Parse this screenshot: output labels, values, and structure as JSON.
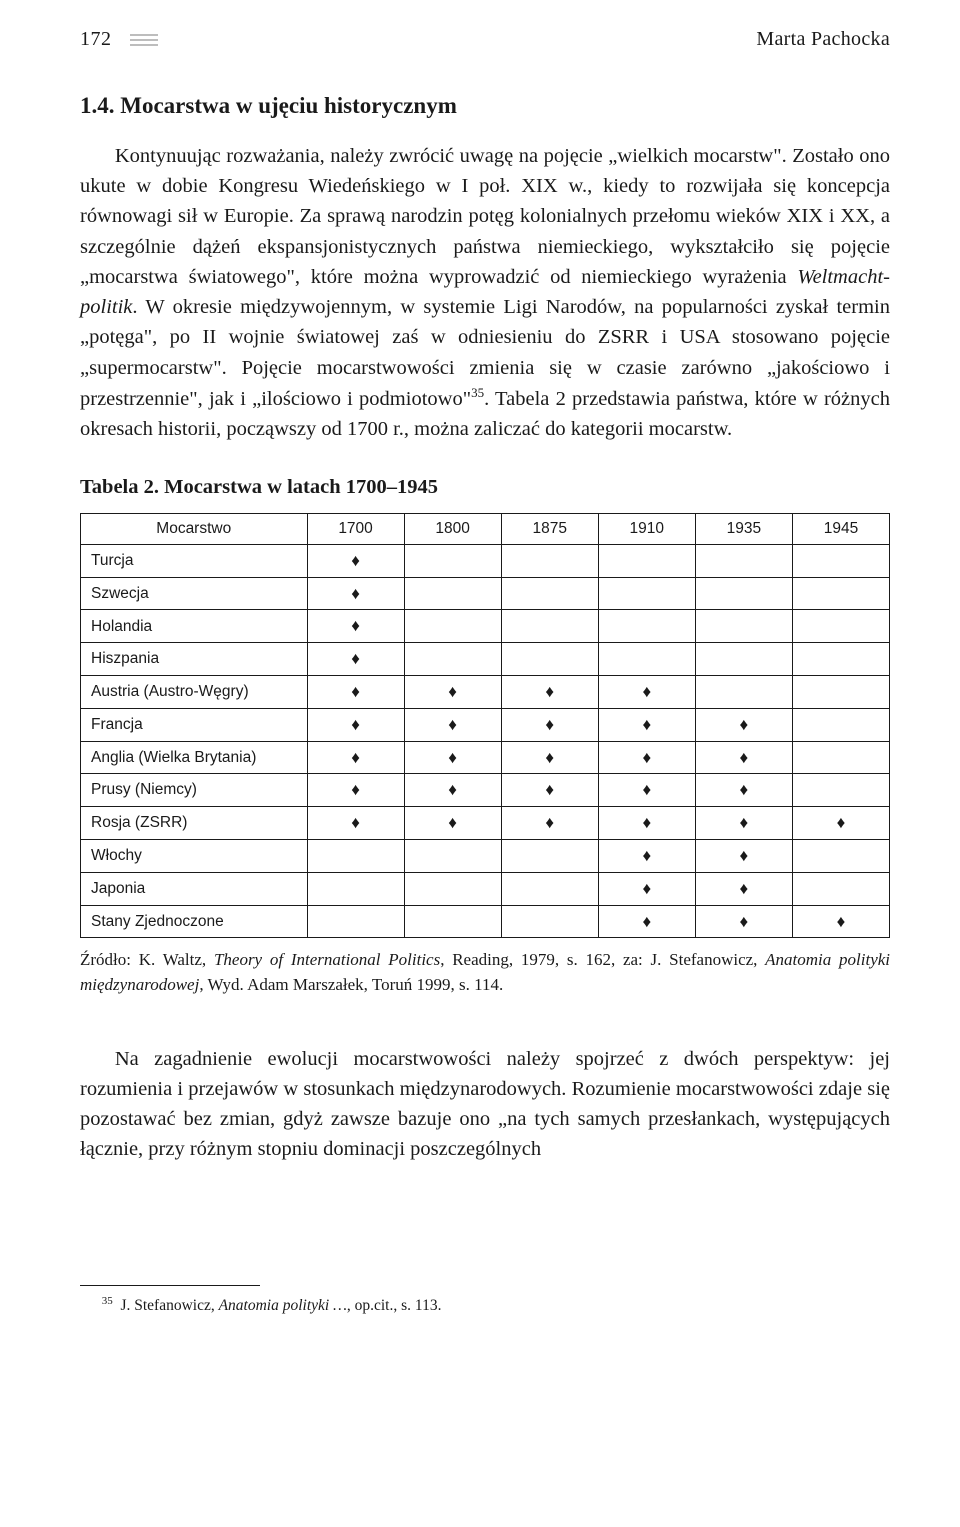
{
  "header": {
    "page_number": "172",
    "author": "Marta Pachocka"
  },
  "section": {
    "number": "1.4.",
    "title": "Mocarstwa w ujęciu historycznym"
  },
  "para1_pre": "Kontynuując rozważania, należy zwrócić uwagę na pojęcie „wielkich mocarstw\". Zostało ono ukute w dobie Kongresu Wiedeńskiego w I poł. XIX w., kiedy to rozwijała się koncepcja równowagi sił w Europie. Za sprawą narodzin potęg kolonialnych przełomu wieków XIX i XX, a szczególnie dążeń ekspansjonistycznych państwa niemieckiego, wykształciło się pojęcie „mocarstwa światowego\", które można wyprowadzić od niemieckiego wyrażenia ",
  "para1_italic": "Weltmacht-politik",
  "para1_post": ". W okresie międzywojennym, w systemie Ligi Narodów, na popularności zyskał termin „potęga\", po II wojnie światowej zaś w odniesieniu do ZSRR i USA stosowano pojęcie „supermocarstw\". Pojęcie mocarstwowości zmienia się w czasie zarówno „jakościowo i przestrzennie\", jak i „ilościowo i podmiotowo\"",
  "para1_fnref": "35",
  "para1_tail": ". Tabela 2 przedstawia państwa, które w różnych okresach historii, począwszy od 1700 r., można zaliczać do kategorii mocarstw.",
  "table": {
    "caption": "Tabela 2. Mocarstwa w latach 1700–1945",
    "columns": [
      "Mocarstwo",
      "1700",
      "1800",
      "1875",
      "1910",
      "1935",
      "1945"
    ],
    "marker": "♦",
    "rows": [
      {
        "name": "Turcja",
        "marks": [
          1,
          0,
          0,
          0,
          0,
          0
        ]
      },
      {
        "name": "Szwecja",
        "marks": [
          1,
          0,
          0,
          0,
          0,
          0
        ]
      },
      {
        "name": "Holandia",
        "marks": [
          1,
          0,
          0,
          0,
          0,
          0
        ]
      },
      {
        "name": "Hiszpania",
        "marks": [
          1,
          0,
          0,
          0,
          0,
          0
        ]
      },
      {
        "name": "Austria (Austro-Węgry)",
        "marks": [
          1,
          1,
          1,
          1,
          0,
          0
        ]
      },
      {
        "name": "Francja",
        "marks": [
          1,
          1,
          1,
          1,
          1,
          0
        ]
      },
      {
        "name": "Anglia (Wielka Brytania)",
        "marks": [
          1,
          1,
          1,
          1,
          1,
          0
        ]
      },
      {
        "name": "Prusy (Niemcy)",
        "marks": [
          1,
          1,
          1,
          1,
          1,
          0
        ]
      },
      {
        "name": "Rosja (ZSRR)",
        "marks": [
          1,
          1,
          1,
          1,
          1,
          1
        ]
      },
      {
        "name": "Włochy",
        "marks": [
          0,
          0,
          0,
          1,
          1,
          0
        ]
      },
      {
        "name": "Japonia",
        "marks": [
          0,
          0,
          0,
          1,
          1,
          0
        ]
      },
      {
        "name": "Stany Zjednoczone",
        "marks": [
          0,
          0,
          0,
          1,
          1,
          1
        ]
      }
    ],
    "col_widths": [
      "28%",
      "12%",
      "12%",
      "12%",
      "12%",
      "12%",
      "12%"
    ]
  },
  "source_pre": "Źródło: K. Waltz, ",
  "source_it1": "Theory of International Politics",
  "source_mid": ", Reading, 1979, s. 162, za: J. Stefanowicz, ",
  "source_it2": "Anatomia polityki międzynarodowej",
  "source_post": ", Wyd. Adam Marszałek, Toruń 1999, s. 114.",
  "para2": "Na zagadnienie ewolucji mocarstwowości należy spojrzeć z dwóch perspektyw: jej rozumienia i przejawów w stosunkach międzynarodowych. Rozumienie mocarstwowości zdaje się pozostawać bez zmian, gdyż zawsze bazuje ono „na tych samych przesłankach, występujących łącznie, przy różnym stopniu dominacji poszczególnych",
  "footnote": {
    "num": "35",
    "text_pre": "J. Stefanowicz, ",
    "text_it": "Anatomia polityki …",
    "text_post": ", op.cit., s. 113."
  }
}
